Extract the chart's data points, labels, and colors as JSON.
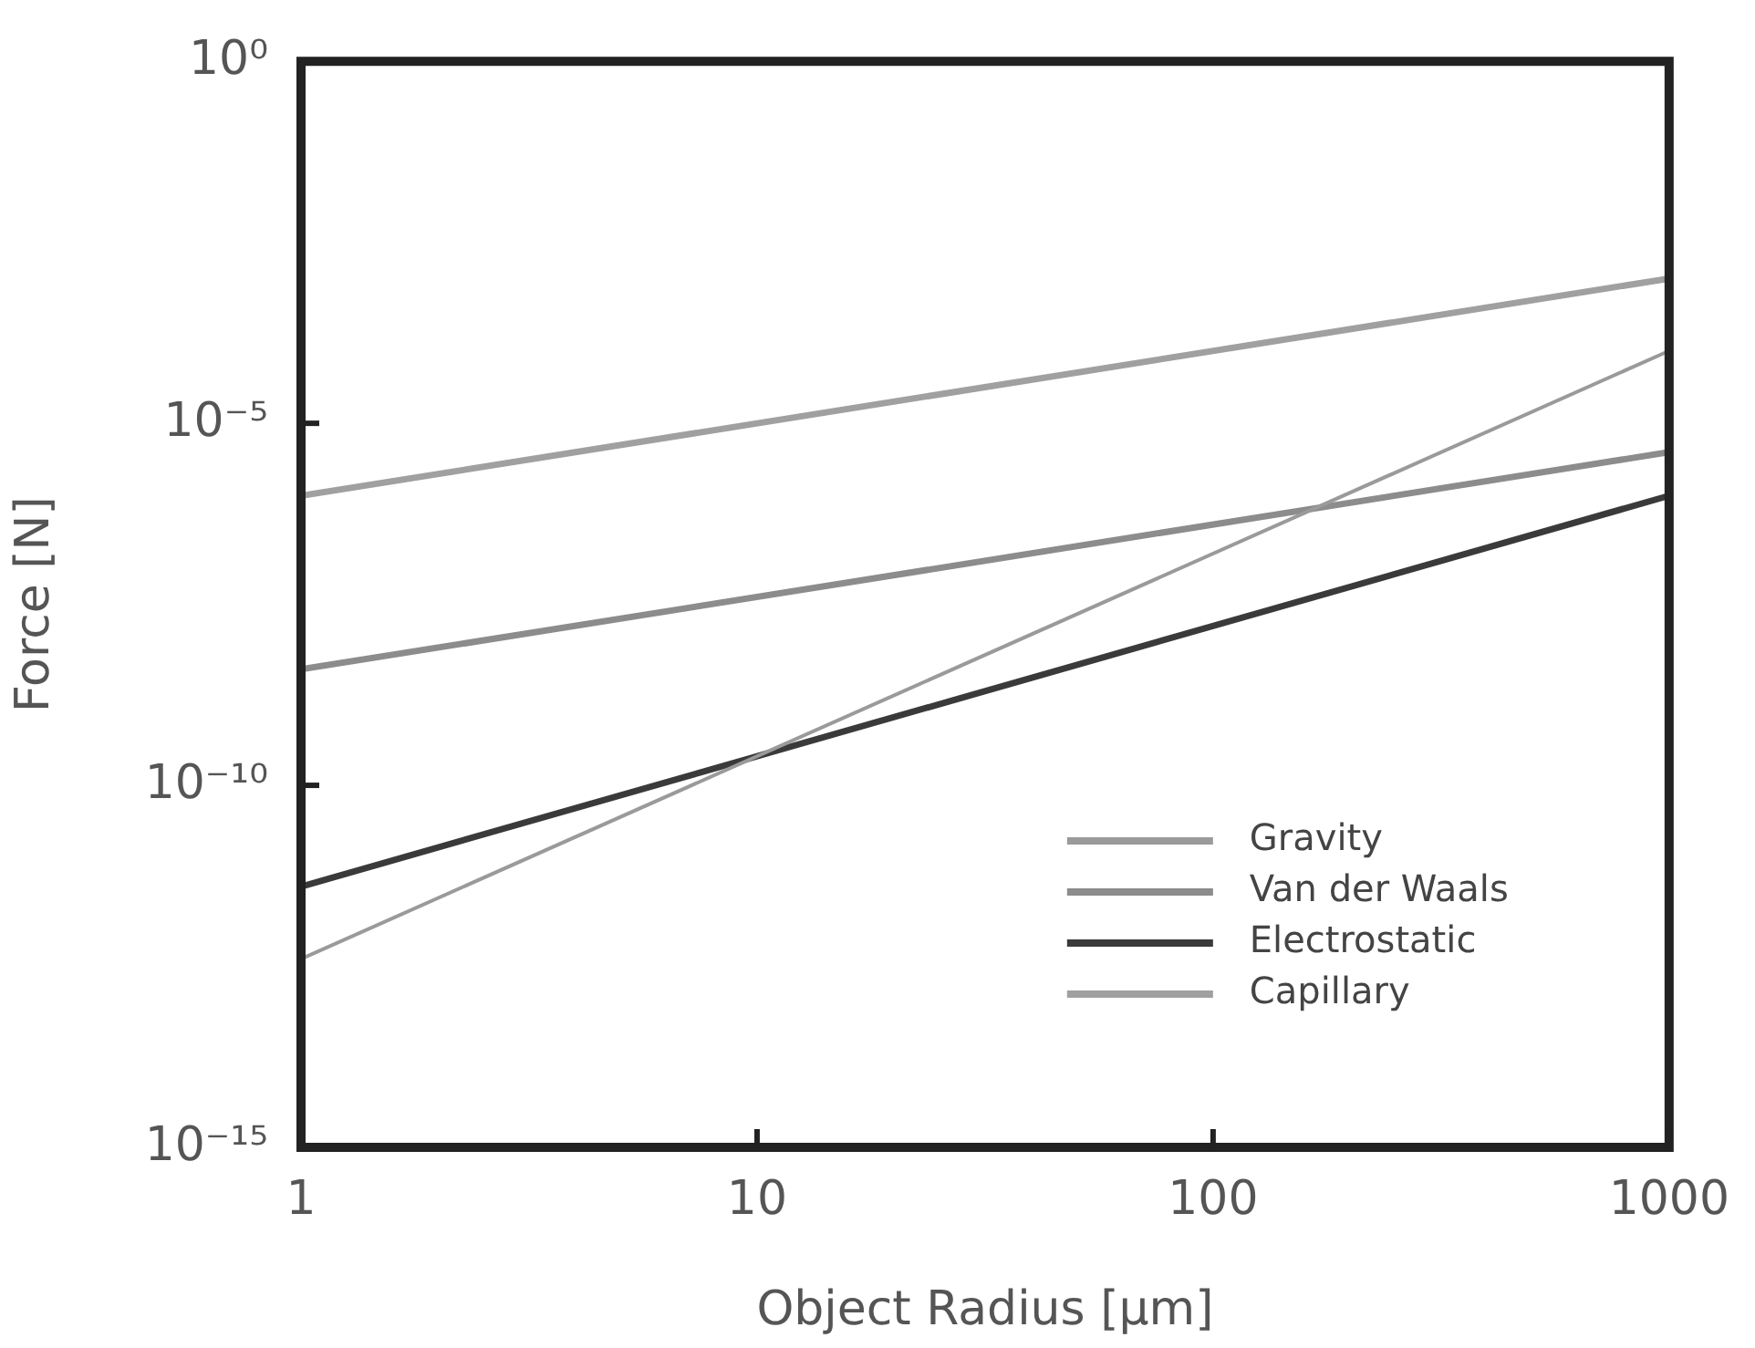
{
  "chart_data": {
    "type": "line",
    "xlabel": "Object Radius [μm]",
    "ylabel": "Force [N]",
    "log": "xy",
    "xlim": [
      1,
      1000
    ],
    "xticks": [
      1,
      10,
      100,
      1000
    ],
    "ylim": [
      1e-15,
      1
    ],
    "yticks": [
      {
        "value": 1e-15,
        "label": "10⁻¹⁵"
      },
      {
        "value": 1e-10,
        "label": "10⁻¹⁰"
      },
      {
        "value": 1e-05,
        "label": "10⁻⁵"
      },
      {
        "value": 1,
        "label": "10⁰"
      }
    ],
    "x": [
      1,
      1000
    ],
    "grid": false,
    "legend": "bottom right",
    "marker": "none",
    "line_style": "solid",
    "series": [
      {
        "name": "Gravity",
        "color": "#9a9a9a",
        "values": [
          4e-13,
          0.0001
        ]
      },
      {
        "name": "Van der Waals",
        "color": "#8c8c8c",
        "values": [
          4e-09,
          4e-06
        ]
      },
      {
        "name": "Electrostatic",
        "color": "#3a3a3a",
        "values": [
          4e-12,
          1e-06
        ]
      },
      {
        "name": "Capillary",
        "color": "#a0a0a0",
        "values": [
          1e-06,
          0.001
        ]
      }
    ]
  }
}
